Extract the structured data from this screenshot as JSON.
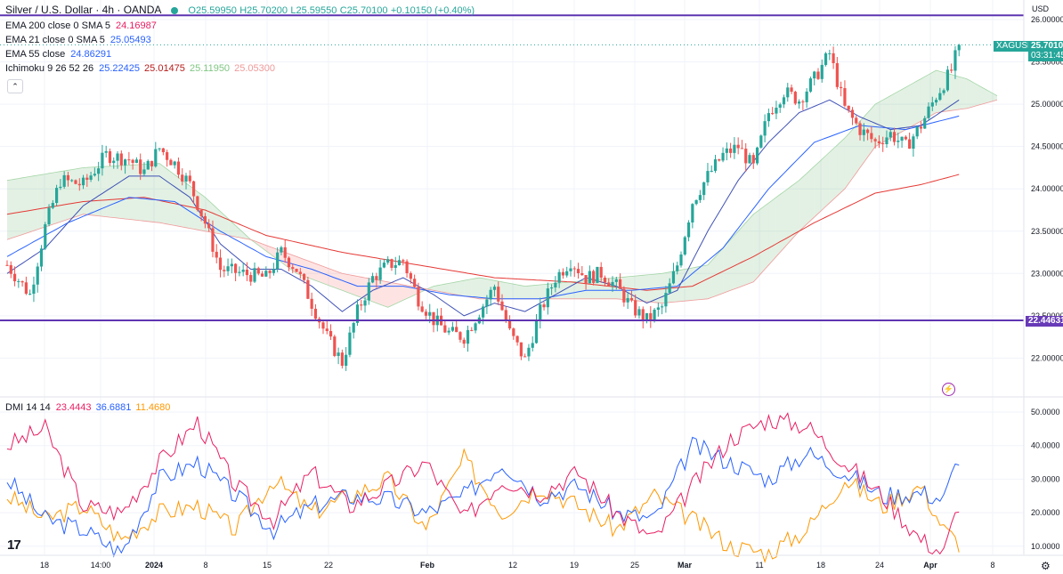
{
  "header": {
    "symbol": "Silver / U.S. Dollar · 4h · OANDA",
    "o": "O25.59950",
    "h": "H25.70200",
    "l": "L25.59550",
    "c": "C25.70100",
    "chg": "+0.10150 (+0.40%)"
  },
  "indicators": [
    {
      "label": "EMA 200 close 0 SMA 5",
      "values": [
        "24.16987"
      ],
      "colors": [
        "#e91e63"
      ]
    },
    {
      "label": "EMA 21 close 0 SMA 5",
      "values": [
        "25.05493"
      ],
      "colors": [
        "#2962ff"
      ]
    },
    {
      "label": "EMA 55 close",
      "values": [
        "24.86291"
      ],
      "colors": [
        "#2962ff"
      ]
    },
    {
      "label": "Ichimoku 9 26 52 26",
      "values": [
        "25.22425",
        "25.01475",
        "25.11950",
        "25.05300"
      ],
      "colors": [
        "#2962ff",
        "#b71c1c",
        "#81c784",
        "#ef9a9a"
      ]
    }
  ],
  "dmi": {
    "label": "DMI 14 14",
    "values": [
      "23.4443",
      "36.6881",
      "11.4680"
    ],
    "colors": [
      "#e91e63",
      "#2962ff",
      "#ff9800"
    ]
  },
  "axis": {
    "currency": "USD",
    "price_ticks": [
      "26.00000",
      "25.50000",
      "25.00000",
      "24.50000",
      "24.00000",
      "23.50000",
      "23.00000",
      "22.50000",
      "22.00000"
    ],
    "dmi_ticks": [
      "50.0000",
      "40.0000",
      "30.0000",
      "20.0000",
      "10.0000"
    ],
    "time_ticks": [
      "18",
      "14:00",
      "2024",
      "8",
      "15",
      "22",
      "Feb",
      "12",
      "19",
      "25",
      "Mar",
      "11",
      "18",
      "24",
      "Apr",
      "8"
    ]
  },
  "tags": {
    "symbol": "XAGUSD",
    "last_price": "25.70100",
    "countdown": "03:31:45",
    "level": "22.44631"
  },
  "chart_data": {
    "type": "candlestick",
    "symbol": "XAGUSD",
    "timeframe": "4h",
    "ylim": [
      21.5,
      26.1
    ],
    "horizontal_lines": [
      26.05,
      22.44631
    ],
    "last_close": 25.701,
    "price_path": [
      [
        0,
        23.1
      ],
      [
        3,
        22.75
      ],
      [
        5,
        23.55
      ],
      [
        7,
        24.1
      ],
      [
        10,
        24.05
      ],
      [
        13,
        24.4
      ],
      [
        16,
        24.35
      ],
      [
        18,
        24.2
      ],
      [
        20,
        24.48
      ],
      [
        22,
        24.3
      ],
      [
        24,
        24.05
      ],
      [
        26,
        23.6
      ],
      [
        28,
        23.05
      ],
      [
        31,
        23.0
      ],
      [
        34,
        22.95
      ],
      [
        36,
        23.25
      ],
      [
        38,
        23.05
      ],
      [
        40,
        22.65
      ],
      [
        42,
        22.25
      ],
      [
        44,
        21.95
      ],
      [
        46,
        22.55
      ],
      [
        48,
        22.95
      ],
      [
        50,
        23.1
      ],
      [
        52,
        23.15
      ],
      [
        54,
        22.7
      ],
      [
        56,
        22.45
      ],
      [
        58,
        22.3
      ],
      [
        60,
        22.25
      ],
      [
        62,
        22.55
      ],
      [
        64,
        22.85
      ],
      [
        66,
        22.3
      ],
      [
        68,
        21.98
      ],
      [
        70,
        22.55
      ],
      [
        72,
        22.95
      ],
      [
        74,
        23.15
      ],
      [
        76,
        22.95
      ],
      [
        78,
        23.0
      ],
      [
        80,
        22.85
      ],
      [
        82,
        22.6
      ],
      [
        84,
        22.45
      ],
      [
        86,
        22.6
      ],
      [
        88,
        23.1
      ],
      [
        90,
        23.85
      ],
      [
        92,
        24.15
      ],
      [
        94,
        24.4
      ],
      [
        96,
        24.5
      ],
      [
        98,
        24.25
      ],
      [
        100,
        24.9
      ],
      [
        102,
        25.15
      ],
      [
        104,
        25.05
      ],
      [
        106,
        25.3
      ],
      [
        108,
        25.6
      ],
      [
        110,
        24.95
      ],
      [
        112,
        24.7
      ],
      [
        114,
        24.55
      ],
      [
        116,
        24.65
      ],
      [
        118,
        24.5
      ],
      [
        120,
        24.75
      ],
      [
        122,
        25.1
      ],
      [
        124,
        25.4
      ],
      [
        125,
        25.7
      ]
    ],
    "ema21_path": [
      [
        0,
        23.0
      ],
      [
        5,
        23.3
      ],
      [
        10,
        23.8
      ],
      [
        16,
        24.15
      ],
      [
        20,
        24.15
      ],
      [
        24,
        23.9
      ],
      [
        28,
        23.35
      ],
      [
        32,
        23.05
      ],
      [
        36,
        23.05
      ],
      [
        40,
        22.85
      ],
      [
        44,
        22.55
      ],
      [
        48,
        22.8
      ],
      [
        52,
        22.95
      ],
      [
        56,
        22.75
      ],
      [
        60,
        22.5
      ],
      [
        64,
        22.65
      ],
      [
        68,
        22.55
      ],
      [
        72,
        22.75
      ],
      [
        76,
        22.95
      ],
      [
        80,
        22.85
      ],
      [
        84,
        22.65
      ],
      [
        88,
        22.8
      ],
      [
        92,
        23.5
      ],
      [
        96,
        24.1
      ],
      [
        100,
        24.55
      ],
      [
        104,
        24.9
      ],
      [
        108,
        25.05
      ],
      [
        112,
        24.85
      ],
      [
        116,
        24.7
      ],
      [
        120,
        24.75
      ],
      [
        125,
        25.05
      ]
    ],
    "ema55_path": [
      [
        0,
        23.2
      ],
      [
        8,
        23.6
      ],
      [
        16,
        23.9
      ],
      [
        22,
        23.85
      ],
      [
        28,
        23.5
      ],
      [
        34,
        23.2
      ],
      [
        40,
        23.05
      ],
      [
        46,
        22.85
      ],
      [
        52,
        22.85
      ],
      [
        58,
        22.75
      ],
      [
        64,
        22.7
      ],
      [
        70,
        22.7
      ],
      [
        76,
        22.8
      ],
      [
        82,
        22.8
      ],
      [
        88,
        22.85
      ],
      [
        94,
        23.3
      ],
      [
        100,
        24.0
      ],
      [
        106,
        24.55
      ],
      [
        112,
        24.75
      ],
      [
        118,
        24.7
      ],
      [
        125,
        24.86
      ]
    ],
    "ema200_path": [
      [
        0,
        23.7
      ],
      [
        10,
        23.85
      ],
      [
        18,
        23.9
      ],
      [
        26,
        23.75
      ],
      [
        34,
        23.45
      ],
      [
        44,
        23.25
      ],
      [
        54,
        23.1
      ],
      [
        64,
        22.95
      ],
      [
        74,
        22.9
      ],
      [
        84,
        22.8
      ],
      [
        90,
        22.85
      ],
      [
        98,
        23.2
      ],
      [
        106,
        23.6
      ],
      [
        114,
        23.95
      ],
      [
        120,
        24.05
      ],
      [
        125,
        24.17
      ]
    ],
    "cloud_a_path": [
      [
        0,
        24.1
      ],
      [
        10,
        24.25
      ],
      [
        20,
        24.3
      ],
      [
        26,
        23.9
      ],
      [
        32,
        23.4
      ],
      [
        38,
        23.0
      ],
      [
        44,
        22.8
      ],
      [
        50,
        22.6
      ],
      [
        56,
        22.85
      ],
      [
        62,
        22.95
      ],
      [
        68,
        22.85
      ],
      [
        74,
        22.9
      ],
      [
        80,
        22.95
      ],
      [
        86,
        23.0
      ],
      [
        92,
        23.1
      ],
      [
        98,
        23.7
      ],
      [
        104,
        24.1
      ],
      [
        110,
        24.6
      ],
      [
        114,
        25.0
      ],
      [
        118,
        25.2
      ],
      [
        122,
        25.4
      ],
      [
        126,
        25.3
      ],
      [
        130,
        25.1
      ]
    ],
    "cloud_b_path": [
      [
        0,
        23.4
      ],
      [
        10,
        23.7
      ],
      [
        20,
        23.6
      ],
      [
        26,
        23.5
      ],
      [
        32,
        23.4
      ],
      [
        38,
        23.2
      ],
      [
        44,
        23.0
      ],
      [
        50,
        22.9
      ],
      [
        56,
        22.8
      ],
      [
        62,
        22.7
      ],
      [
        68,
        22.7
      ],
      [
        74,
        22.7
      ],
      [
        80,
        22.7
      ],
      [
        86,
        22.65
      ],
      [
        92,
        22.7
      ],
      [
        98,
        22.9
      ],
      [
        104,
        23.5
      ],
      [
        110,
        24.0
      ],
      [
        114,
        24.5
      ],
      [
        118,
        24.7
      ],
      [
        122,
        24.9
      ],
      [
        126,
        24.95
      ],
      [
        130,
        25.05
      ]
    ],
    "dmi_plus_path": [
      [
        0,
        40
      ],
      [
        5,
        45
      ],
      [
        10,
        22
      ],
      [
        15,
        20
      ],
      [
        20,
        35
      ],
      [
        25,
        47
      ],
      [
        30,
        28
      ],
      [
        35,
        18
      ],
      [
        40,
        32
      ],
      [
        45,
        22
      ],
      [
        50,
        28
      ],
      [
        55,
        35
      ],
      [
        60,
        18
      ],
      [
        65,
        30
      ],
      [
        70,
        26
      ],
      [
        75,
        32
      ],
      [
        80,
        20
      ],
      [
        85,
        12
      ],
      [
        90,
        28
      ],
      [
        95,
        42
      ],
      [
        100,
        48
      ],
      [
        105,
        46
      ],
      [
        110,
        35
      ],
      [
        115,
        25
      ],
      [
        120,
        12
      ],
      [
        123,
        8
      ],
      [
        125,
        23
      ]
    ],
    "dmi_minus_path": [
      [
        0,
        30
      ],
      [
        5,
        18
      ],
      [
        10,
        15
      ],
      [
        15,
        8
      ],
      [
        20,
        30
      ],
      [
        25,
        35
      ],
      [
        30,
        25
      ],
      [
        35,
        15
      ],
      [
        40,
        22
      ],
      [
        45,
        25
      ],
      [
        50,
        24
      ],
      [
        55,
        20
      ],
      [
        60,
        25
      ],
      [
        65,
        35
      ],
      [
        70,
        25
      ],
      [
        75,
        28
      ],
      [
        80,
        20
      ],
      [
        85,
        18
      ],
      [
        90,
        40
      ],
      [
        95,
        35
      ],
      [
        100,
        30
      ],
      [
        105,
        38
      ],
      [
        110,
        32
      ],
      [
        115,
        25
      ],
      [
        120,
        26
      ],
      [
        123,
        24
      ],
      [
        125,
        37
      ]
    ],
    "adx_path": [
      [
        0,
        25
      ],
      [
        5,
        18
      ],
      [
        10,
        22
      ],
      [
        15,
        12
      ],
      [
        20,
        20
      ],
      [
        25,
        22
      ],
      [
        30,
        15
      ],
      [
        35,
        30
      ],
      [
        40,
        20
      ],
      [
        45,
        25
      ],
      [
        50,
        30
      ],
      [
        55,
        15
      ],
      [
        60,
        36
      ],
      [
        65,
        20
      ],
      [
        70,
        28
      ],
      [
        75,
        22
      ],
      [
        80,
        15
      ],
      [
        85,
        25
      ],
      [
        90,
        18
      ],
      [
        95,
        10
      ],
      [
        100,
        8
      ],
      [
        105,
        15
      ],
      [
        110,
        30
      ],
      [
        115,
        22
      ],
      [
        120,
        28
      ],
      [
        123,
        15
      ],
      [
        125,
        11
      ]
    ]
  }
}
